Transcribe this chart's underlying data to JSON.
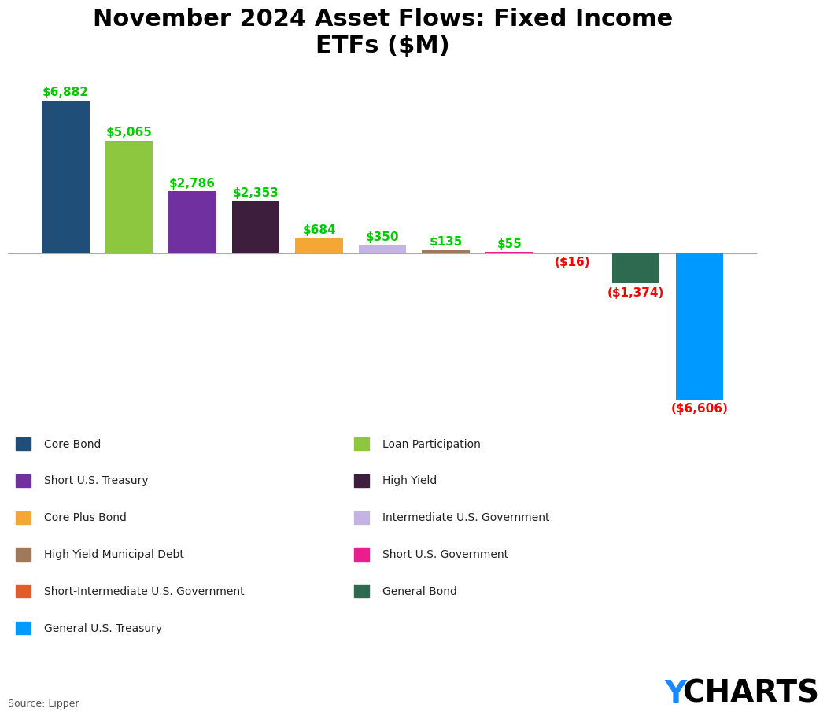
{
  "title": "November 2024 Asset Flows: Fixed Income\nETFs ($M)",
  "categories": [
    "Core Bond",
    "Loan Participation",
    "Short U.S. Treasury",
    "High Yield",
    "Core Plus Bond",
    "Intermediate U.S. Government",
    "High Yield Municipal Debt",
    "Short U.S. Government",
    "Short-Intermediate U.S. Government",
    "General Bond",
    "General U.S. Treasury"
  ],
  "values": [
    6882,
    5065,
    2786,
    2353,
    684,
    350,
    135,
    55,
    -16,
    -1374,
    -6606
  ],
  "colors": [
    "#1f4e79",
    "#8dc63f",
    "#7030a0",
    "#3d1f3d",
    "#f4a636",
    "#c5b4e3",
    "#a0785a",
    "#e91e8c",
    "#e25c2a",
    "#2d6a4f",
    "#0099ff"
  ],
  "label_color_positive": "#00cc00",
  "label_color_negative": "#ff0000",
  "source_text": "Source: Lipper",
  "ycharts_y_color": "#1a88ff",
  "ycharts_text_color": "#000000",
  "background_color": "#ffffff",
  "legend_col1": [
    "Core Bond",
    "Short U.S. Treasury",
    "Core Plus Bond",
    "High Yield Municipal Debt",
    "Short-Intermediate U.S. Government",
    "General U.S. Treasury"
  ],
  "legend_col2": [
    "Loan Participation",
    "High Yield",
    "Intermediate U.S. Government",
    "Short U.S. Government",
    "General Bond"
  ],
  "legend_colors_col1": [
    "#1f4e79",
    "#7030a0",
    "#f4a636",
    "#a0785a",
    "#e25c2a",
    "#0099ff"
  ],
  "legend_colors_col2": [
    "#8dc63f",
    "#3d1f3d",
    "#c5b4e3",
    "#e91e8c",
    "#2d6a4f"
  ]
}
